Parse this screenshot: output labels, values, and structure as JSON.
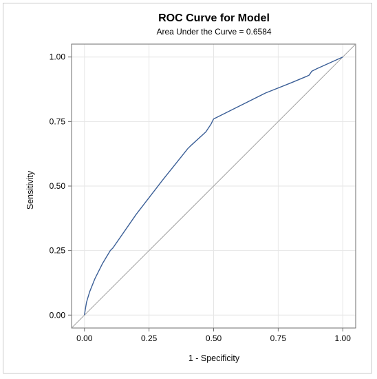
{
  "chart_data": {
    "type": "line",
    "title": "ROC Curve for Model",
    "subtitle": "Area Under the Curve = 0.6584",
    "xlabel": "1 - Specificity",
    "ylabel": "Sensitivity",
    "xlim": [
      -0.05,
      1.05
    ],
    "ylim": [
      -0.05,
      1.05
    ],
    "x_ticks": [
      0.0,
      0.25,
      0.5,
      0.75,
      1.0
    ],
    "x_tick_labels": [
      "0.00",
      "0.25",
      "0.50",
      "0.75",
      "1.00"
    ],
    "y_ticks": [
      0.0,
      0.25,
      0.5,
      0.75,
      1.0
    ],
    "y_tick_labels": [
      "0.00",
      "0.25",
      "0.50",
      "0.75",
      "1.00"
    ],
    "grid": true,
    "series": [
      {
        "color": "#3b5f97",
        "x": [
          0.0,
          0.003,
          0.008,
          0.02,
          0.04,
          0.07,
          0.1,
          0.11,
          0.2,
          0.3,
          0.4,
          0.41,
          0.47,
          0.49,
          0.5,
          0.6,
          0.7,
          0.8,
          0.86,
          0.87,
          0.88,
          0.9,
          1.0
        ],
        "y": [
          0.0,
          0.02,
          0.05,
          0.09,
          0.14,
          0.2,
          0.25,
          0.26,
          0.39,
          0.52,
          0.645,
          0.655,
          0.71,
          0.74,
          0.76,
          0.81,
          0.86,
          0.9,
          0.925,
          0.93,
          0.945,
          0.955,
          1.0
        ]
      }
    ],
    "reference_line": {
      "color": "#a0a0a0",
      "x": [
        -0.05,
        1.05
      ],
      "y": [
        -0.05,
        1.05
      ]
    }
  }
}
